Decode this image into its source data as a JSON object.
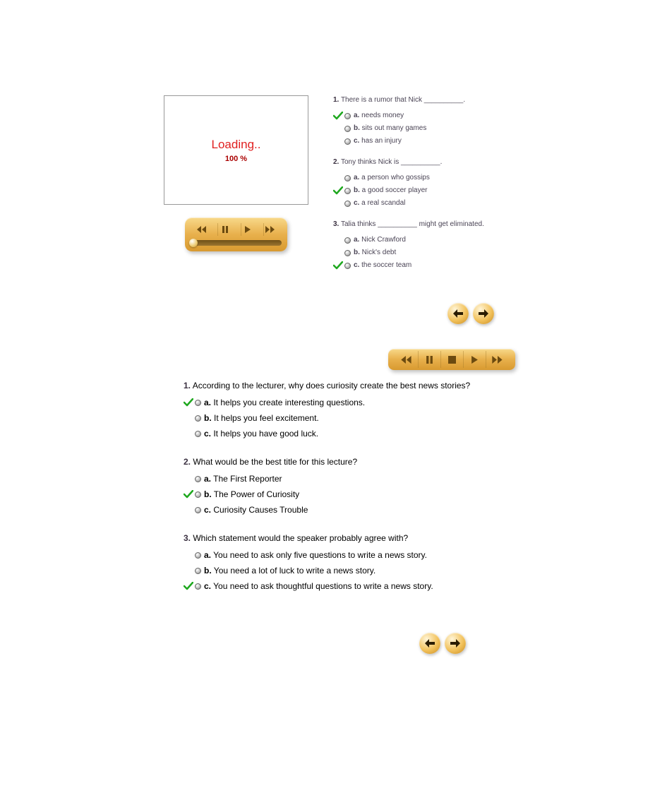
{
  "video": {
    "loading_text": "Loading..",
    "loading_pct": "100 %"
  },
  "colors": {
    "player_bg_top": "#f8d98a",
    "player_bg_bottom": "#d89a30",
    "tick": "#1fa81f",
    "loading": "#e02020"
  },
  "section1": {
    "questions": [
      {
        "num": "1.",
        "text": "There is a rumor that Nick __________.",
        "options": [
          {
            "letter": "a.",
            "text": "needs money",
            "correct": true
          },
          {
            "letter": "b.",
            "text": "sits out many games",
            "correct": false
          },
          {
            "letter": "c.",
            "text": "has an injury",
            "correct": false
          }
        ]
      },
      {
        "num": "2.",
        "text": "Tony thinks Nick is __________.",
        "options": [
          {
            "letter": "a.",
            "text": "a person who gossips",
            "correct": false
          },
          {
            "letter": "b.",
            "text": "a good soccer player",
            "correct": true
          },
          {
            "letter": "c.",
            "text": "a real scandal",
            "correct": false
          }
        ]
      },
      {
        "num": "3.",
        "text": "Talia thinks __________ might get eliminated.",
        "options": [
          {
            "letter": "a.",
            "text": "Nick Crawford",
            "correct": false
          },
          {
            "letter": "b.",
            "text": "Nick's debt",
            "correct": false
          },
          {
            "letter": "c.",
            "text": "the soccer team",
            "correct": true
          }
        ]
      }
    ]
  },
  "section2": {
    "questions": [
      {
        "num": "1.",
        "text": "According to the lecturer, why does curiosity create the best news stories?",
        "options": [
          {
            "letter": "a.",
            "text": "It helps you create interesting questions.",
            "correct": true
          },
          {
            "letter": "b.",
            "text": "It helps you feel excitement.",
            "correct": false
          },
          {
            "letter": "c.",
            "text": "It helps you have good luck.",
            "correct": false
          }
        ]
      },
      {
        "num": "2.",
        "text": "What would be the best title for this lecture?",
        "options": [
          {
            "letter": "a.",
            "text": "The First Reporter",
            "correct": false
          },
          {
            "letter": "b.",
            "text": "The Power of Curiosity",
            "correct": true
          },
          {
            "letter": "c.",
            "text": "Curiosity Causes Trouble",
            "correct": false
          }
        ]
      },
      {
        "num": "3.",
        "text": "Which statement would the speaker probably agree with?",
        "options": [
          {
            "letter": "a.",
            "text": "You need to ask only five questions to write a news story.",
            "correct": false
          },
          {
            "letter": "b.",
            "text": "You need a lot of luck to write a news story.",
            "correct": false
          },
          {
            "letter": "c.",
            "text": "You need to ask thoughtful questions to write a news story.",
            "correct": true
          }
        ]
      }
    ]
  }
}
